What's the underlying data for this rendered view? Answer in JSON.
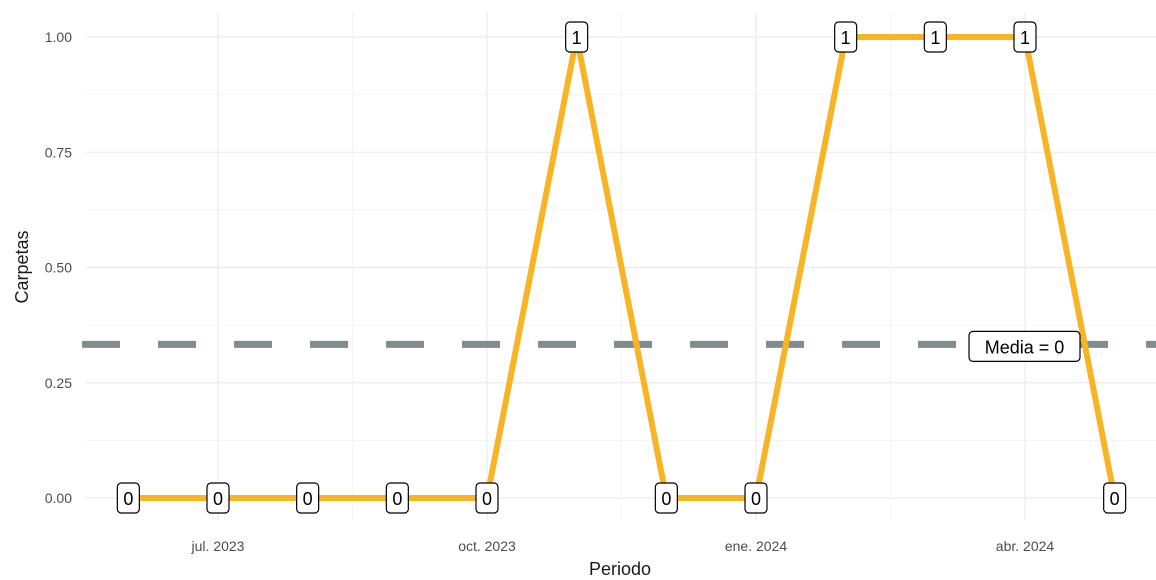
{
  "chart_data": {
    "type": "line",
    "xlabel": "Periodo",
    "ylabel": "Carpetas",
    "x": [
      "2023-06",
      "2023-07",
      "2023-08",
      "2023-09",
      "2023-10",
      "2023-11",
      "2023-12",
      "2024-01",
      "2024-02",
      "2024-03",
      "2024-04",
      "2024-05"
    ],
    "x_ticks": [
      {
        "date": "2023-07",
        "label": "jul. 2023"
      },
      {
        "date": "2023-10",
        "label": "oct. 2023"
      },
      {
        "date": "2024-01",
        "label": "ene. 2024"
      },
      {
        "date": "2024-04",
        "label": "abr. 2024"
      }
    ],
    "series": [
      {
        "values": [
          0,
          0,
          0,
          0,
          0,
          1,
          0,
          0,
          1,
          1,
          1,
          0
        ],
        "color": "#f7b526"
      }
    ],
    "data_labels": [
      "0",
      "0",
      "0",
      "0",
      "0",
      "1",
      "0",
      "0",
      "1",
      "1",
      "1",
      "0"
    ],
    "y_ticks": [
      0,
      0.25,
      0.5,
      0.75,
      1.0
    ],
    "y_tick_labels": [
      "0.00",
      "0.25",
      "0.50",
      "0.75",
      "1.00"
    ],
    "ylim": [
      0,
      1
    ],
    "mean_line": {
      "value": 0.3333,
      "label": "Media = 0",
      "color": "#7f8c8d"
    },
    "grid": true,
    "legend": "none"
  }
}
